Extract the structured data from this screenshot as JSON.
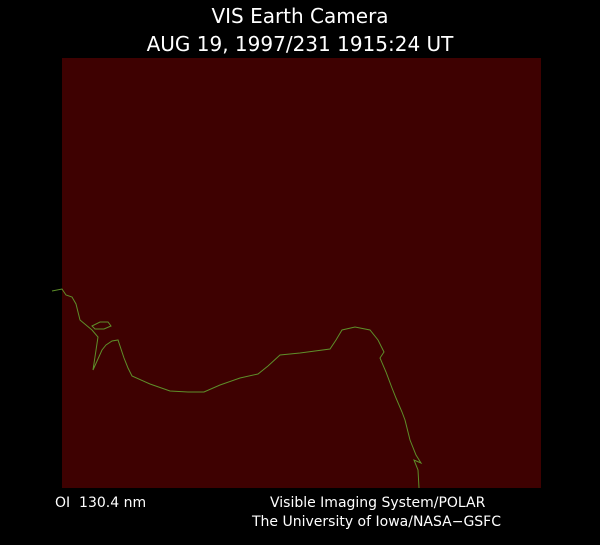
{
  "header": {
    "title": "VIS Earth Camera",
    "timestamp": "AUG 19, 1997/231 1915:24 UT"
  },
  "footer": {
    "filter": "OI  130.4 nm",
    "instrument": "Visible Imaging System/POLAR",
    "institution": "The University of Iowa/NASA−GSFC"
  }
}
